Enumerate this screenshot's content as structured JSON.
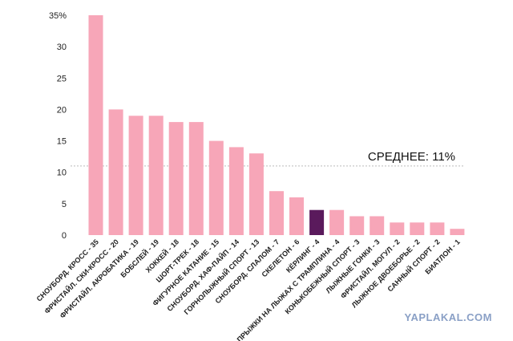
{
  "chart_data": {
    "type": "bar",
    "categories": [
      "СНОУБОРД. КРОСС - 35",
      "ФРИСТАЙЛ. СКИ-КРОСС - 20",
      "ФРИСТАЙЛ. АКРОБАТИКА - 19",
      "БОБСЛЕЙ - 19",
      "ХОККЕЙ - 18",
      "ШОРТ-ТРЕК - 18",
      "ФИГУРНОЕ КАТАНИЕ - 15",
      "СНОУБОРД. ХАФ-ПАЙП - 14",
      "ГОРНОЛЫЖНЫЙ СПОРТ - 13",
      "СНОУБОРД. СЛАЛОМ - 7",
      "СКЕЛЕТОН - 6",
      "КЁРЛИНГ - 4",
      "ПРЫЖКИ НА ЛЫЖАХ С ТРАМПЛИНА - 4",
      "КОНЬКОБЕЖНЫЙ СПОРТ - 3",
      "ЛЫЖНЫЕ ГОНКИ - 3",
      "ФРИСТАЙЛ. МОГУЛ - 2",
      "ЛЫЖНОЕ ДВОЕБОРЬЕ - 2",
      "САННЫЙ СПОРТ - 2",
      "БИАТЛОН - 1"
    ],
    "values": [
      35,
      20,
      19,
      19,
      18,
      18,
      15,
      14,
      13,
      7,
      6,
      4,
      4,
      3,
      3,
      2,
      2,
      2,
      1
    ],
    "highlight_index": 11,
    "bar_color": "#f7a6b8",
    "highlight_color": "#5a1a5c",
    "ylim": [
      0,
      35
    ],
    "yticks": [
      "0",
      "5",
      "10",
      "15",
      "20",
      "25",
      "30",
      "35%"
    ],
    "ytick_values": [
      0,
      5,
      10,
      15,
      20,
      25,
      30,
      35
    ],
    "average": {
      "value": 11,
      "label": "СРЕДНЕЕ: 11%"
    },
    "grid": false
  },
  "watermark": "YAPLAKAL.COM"
}
